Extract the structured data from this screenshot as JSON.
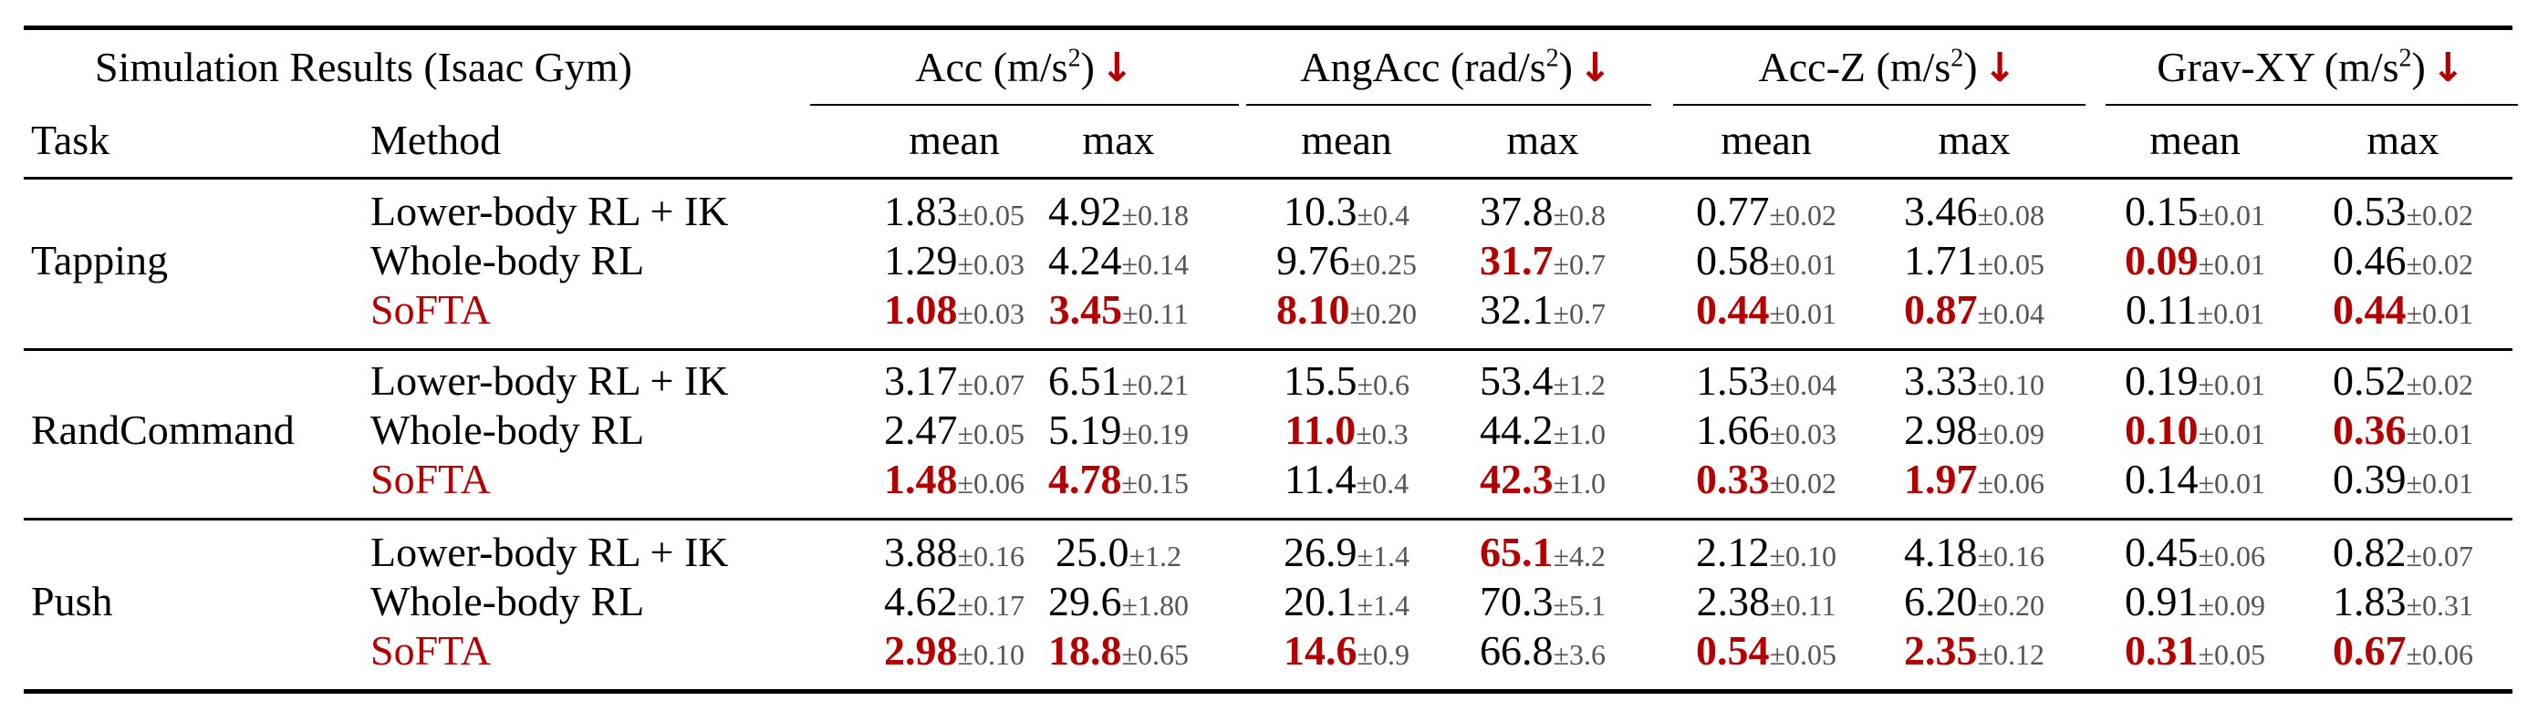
{
  "caption": "Simulation Results (Isaac Gym)",
  "header": {
    "task": "Task",
    "method": "Method",
    "mean": "mean",
    "max": "max",
    "groups": [
      {
        "name": "Acc",
        "unit": "(m/s",
        "exp": "2",
        "close": ")"
      },
      {
        "name": "AngAcc",
        "unit": "(rad/s",
        "exp": "2",
        "close": ")"
      },
      {
        "name": "Acc-Z",
        "unit": "(m/s",
        "exp": "2",
        "close": ")"
      },
      {
        "name": "Grav-XY",
        "unit": "(m/s",
        "exp": "2",
        "close": ")"
      }
    ],
    "arrow": "↓"
  },
  "colors": {
    "highlight": "#b40000",
    "std": "#555555"
  },
  "tasks": [
    {
      "name": "Tapping",
      "rows": [
        {
          "method": "Lower-body RL + IK",
          "highlight": false,
          "cells": [
            {
              "m": "1.83",
              "s": "±0.05",
              "best": false
            },
            {
              "m": "4.92",
              "s": "±0.18",
              "best": false
            },
            {
              "m": "10.3",
              "s": "±0.4",
              "best": false
            },
            {
              "m": "37.8",
              "s": "±0.8",
              "best": false
            },
            {
              "m": "0.77",
              "s": "±0.02",
              "best": false
            },
            {
              "m": "3.46",
              "s": "±0.08",
              "best": false
            },
            {
              "m": "0.15",
              "s": "±0.01",
              "best": false
            },
            {
              "m": "0.53",
              "s": "±0.02",
              "best": false
            }
          ]
        },
        {
          "method": "Whole-body RL",
          "highlight": false,
          "cells": [
            {
              "m": "1.29",
              "s": "±0.03",
              "best": false
            },
            {
              "m": "4.24",
              "s": "±0.14",
              "best": false
            },
            {
              "m": "9.76",
              "s": "±0.25",
              "best": false
            },
            {
              "m": "31.7",
              "s": "±0.7",
              "best": true
            },
            {
              "m": "0.58",
              "s": "±0.01",
              "best": false
            },
            {
              "m": "1.71",
              "s": "±0.05",
              "best": false
            },
            {
              "m": "0.09",
              "s": "±0.01",
              "best": true
            },
            {
              "m": "0.46",
              "s": "±0.02",
              "best": false
            }
          ]
        },
        {
          "method": "SoFTA",
          "highlight": true,
          "cells": [
            {
              "m": "1.08",
              "s": "±0.03",
              "best": true
            },
            {
              "m": "3.45",
              "s": "±0.11",
              "best": true
            },
            {
              "m": "8.10",
              "s": "±0.20",
              "best": true
            },
            {
              "m": "32.1",
              "s": "±0.7",
              "best": false
            },
            {
              "m": "0.44",
              "s": "±0.01",
              "best": true
            },
            {
              "m": "0.87",
              "s": "±0.04",
              "best": true
            },
            {
              "m": "0.11",
              "s": "±0.01",
              "best": false
            },
            {
              "m": "0.44",
              "s": "±0.01",
              "best": true
            }
          ]
        }
      ]
    },
    {
      "name": "RandCommand",
      "rows": [
        {
          "method": "Lower-body RL + IK",
          "highlight": false,
          "cells": [
            {
              "m": "3.17",
              "s": "±0.07",
              "best": false
            },
            {
              "m": "6.51",
              "s": "±0.21",
              "best": false
            },
            {
              "m": "15.5",
              "s": "±0.6",
              "best": false
            },
            {
              "m": "53.4",
              "s": "±1.2",
              "best": false
            },
            {
              "m": "1.53",
              "s": "±0.04",
              "best": false
            },
            {
              "m": "3.33",
              "s": "±0.10",
              "best": false
            },
            {
              "m": "0.19",
              "s": "±0.01",
              "best": false
            },
            {
              "m": "0.52",
              "s": "±0.02",
              "best": false
            }
          ]
        },
        {
          "method": "Whole-body RL",
          "highlight": false,
          "cells": [
            {
              "m": "2.47",
              "s": "±0.05",
              "best": false
            },
            {
              "m": "5.19",
              "s": "±0.19",
              "best": false
            },
            {
              "m": "11.0",
              "s": "±0.3",
              "best": true
            },
            {
              "m": "44.2",
              "s": "±1.0",
              "best": false
            },
            {
              "m": "1.66",
              "s": "±0.03",
              "best": false
            },
            {
              "m": "2.98",
              "s": "±0.09",
              "best": false
            },
            {
              "m": "0.10",
              "s": "±0.01",
              "best": true
            },
            {
              "m": "0.36",
              "s": "±0.01",
              "best": true
            }
          ]
        },
        {
          "method": "SoFTA",
          "highlight": true,
          "cells": [
            {
              "m": "1.48",
              "s": "±0.06",
              "best": true
            },
            {
              "m": "4.78",
              "s": "±0.15",
              "best": true
            },
            {
              "m": "11.4",
              "s": "±0.4",
              "best": false
            },
            {
              "m": "42.3",
              "s": "±1.0",
              "best": true
            },
            {
              "m": "0.33",
              "s": "±0.02",
              "best": true
            },
            {
              "m": "1.97",
              "s": "±0.06",
              "best": true
            },
            {
              "m": "0.14",
              "s": "±0.01",
              "best": false
            },
            {
              "m": "0.39",
              "s": "±0.01",
              "best": false
            }
          ]
        }
      ]
    },
    {
      "name": "Push",
      "rows": [
        {
          "method": "Lower-body RL + IK",
          "highlight": false,
          "cells": [
            {
              "m": "3.88",
              "s": "±0.16",
              "best": false
            },
            {
              "m": "25.0",
              "s": "±1.2",
              "best": false
            },
            {
              "m": "26.9",
              "s": "±1.4",
              "best": false
            },
            {
              "m": "65.1",
              "s": "±4.2",
              "best": true
            },
            {
              "m": "2.12",
              "s": "±0.10",
              "best": false
            },
            {
              "m": "4.18",
              "s": "±0.16",
              "best": false
            },
            {
              "m": "0.45",
              "s": "±0.06",
              "best": false
            },
            {
              "m": "0.82",
              "s": "±0.07",
              "best": false
            }
          ]
        },
        {
          "method": "Whole-body RL",
          "highlight": false,
          "cells": [
            {
              "m": "4.62",
              "s": "±0.17",
              "best": false
            },
            {
              "m": "29.6",
              "s": "±1.80",
              "best": false
            },
            {
              "m": "20.1",
              "s": "±1.4",
              "best": false
            },
            {
              "m": "70.3",
              "s": "±5.1",
              "best": false
            },
            {
              "m": "2.38",
              "s": "±0.11",
              "best": false
            },
            {
              "m": "6.20",
              "s": "±0.20",
              "best": false
            },
            {
              "m": "0.91",
              "s": "±0.09",
              "best": false
            },
            {
              "m": "1.83",
              "s": "±0.31",
              "best": false
            }
          ]
        },
        {
          "method": "SoFTA",
          "highlight": true,
          "cells": [
            {
              "m": "2.98",
              "s": "±0.10",
              "best": true
            },
            {
              "m": "18.8",
              "s": "±0.65",
              "best": true
            },
            {
              "m": "14.6",
              "s": "±0.9",
              "best": true
            },
            {
              "m": "66.8",
              "s": "±3.6",
              "best": false
            },
            {
              "m": "0.54",
              "s": "±0.05",
              "best": true
            },
            {
              "m": "2.35",
              "s": "±0.12",
              "best": true
            },
            {
              "m": "0.31",
              "s": "±0.05",
              "best": true
            },
            {
              "m": "0.67",
              "s": "±0.06",
              "best": true
            }
          ]
        }
      ]
    }
  ]
}
